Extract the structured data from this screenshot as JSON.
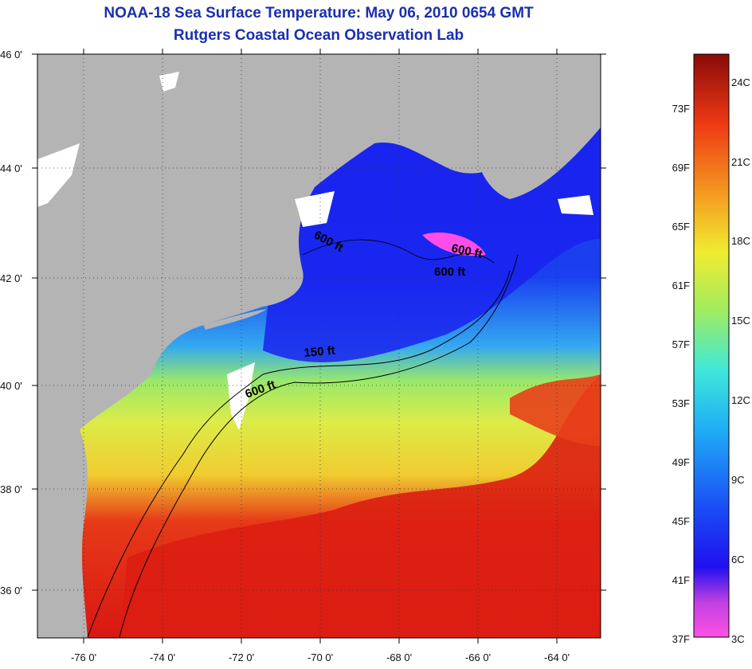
{
  "title": {
    "line1": "NOAA-18 Sea Surface Temperature:  May 06, 2010 0654 GMT",
    "line2": "Rutgers Coastal Ocean Observation Lab"
  },
  "map": {
    "lat_ticks": [
      "46 0'",
      "44 0'",
      "42 0'",
      "40 0'",
      "38 0'",
      "36 0'"
    ],
    "lon_ticks": [
      "-76 0'",
      "-74 0'",
      "-72 0'",
      "-70 0'",
      "-68 0'",
      "-66 0'",
      "-64 0'"
    ],
    "contour_labels": [
      "600 ft",
      "600 ft",
      "600 ft",
      "150 ft",
      "600 ft"
    ],
    "colors": {
      "land": "#b4b4b4",
      "cloud": "#ffffff",
      "cold": "#1a2cf0",
      "cool": "#2e8cf5",
      "mid": "#a6ec5a",
      "warm": "#f5e83a",
      "hot": "#e01a12"
    }
  },
  "colorbar": {
    "fahrenheit": [
      "73F",
      "69F",
      "65F",
      "61F",
      "57F",
      "53F",
      "49F",
      "45F",
      "41F",
      "37F"
    ],
    "celsius": [
      "24C",
      "21C",
      "18C",
      "15C",
      "12C",
      "9C",
      "6C",
      "3C"
    ]
  }
}
